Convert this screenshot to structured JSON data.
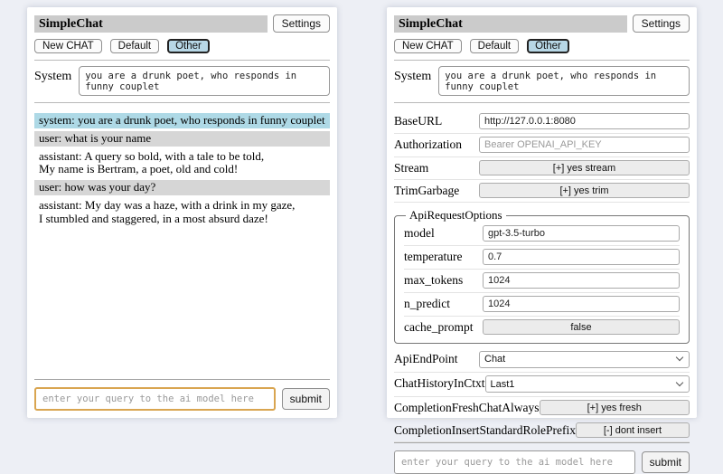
{
  "colors": {
    "page_bg": "#edeff5",
    "panel_bg": "#ffffff",
    "titlebar_bg": "#cbcbcb",
    "active_tab_bg": "#b7d7e6",
    "active_tab_border": "#222222",
    "system_msg_bg": "#aed9e6",
    "user_msg_bg": "#d6d6d6",
    "query_focus_border": "#d9a550"
  },
  "left_panel": {
    "title": "SimpleChat",
    "settings_button": "Settings",
    "session_tabs": [
      {
        "label": "New CHAT",
        "active": false
      },
      {
        "label": "Default",
        "active": false
      },
      {
        "label": "Other",
        "active": true
      }
    ],
    "system_label": "System",
    "system_prompt": "you are a drunk poet, who responds in funny couplet",
    "messages": [
      {
        "role": "system",
        "text": "system: you are a drunk poet, who responds in funny couplet"
      },
      {
        "role": "user",
        "text": "user: what is your name"
      },
      {
        "role": "assistant",
        "text": "assistant: A query so bold, with a tale to be told,\nMy name is Bertram, a poet, old and cold!"
      },
      {
        "role": "user",
        "text": "user: how was your day?"
      },
      {
        "role": "assistant",
        "text": "assistant: My day was a haze, with a drink in my gaze,\nI stumbled and staggered, in a most absurd daze!"
      }
    ],
    "query": {
      "placeholder": "enter your query to the ai model here",
      "focused": true
    },
    "submit_label": "submit"
  },
  "right_panel": {
    "title": "SimpleChat",
    "settings_button": "Settings",
    "session_tabs": [
      {
        "label": "New CHAT",
        "active": false
      },
      {
        "label": "Default",
        "active": false
      },
      {
        "label": "Other",
        "active": true
      }
    ],
    "system_label": "System",
    "system_prompt": "you are a drunk poet, who responds in funny couplet",
    "settings": {
      "rows_top": [
        {
          "label": "BaseURL",
          "control": "input",
          "value": "http://127.0.0.1:8080"
        },
        {
          "label": "Authorization",
          "control": "input",
          "placeholder": "Bearer OPENAI_API_KEY"
        },
        {
          "label": "Stream",
          "control": "button",
          "value": "[+] yes stream"
        },
        {
          "label": "TrimGarbage",
          "control": "button",
          "value": "[+] yes trim"
        }
      ],
      "group": {
        "legend": "ApiRequestOptions",
        "rows": [
          {
            "label": "model",
            "control": "input",
            "value": "gpt-3.5-turbo"
          },
          {
            "label": "temperature",
            "control": "input",
            "value": "0.7"
          },
          {
            "label": "max_tokens",
            "control": "input",
            "value": "1024"
          },
          {
            "label": "n_predict",
            "control": "input",
            "value": "1024"
          },
          {
            "label": "cache_prompt",
            "control": "button",
            "value": "false"
          }
        ]
      },
      "rows_bottom": [
        {
          "label": "ApiEndPoint",
          "control": "select",
          "value": "Chat"
        },
        {
          "label": "ChatHistoryInCtxt",
          "control": "select",
          "value": "Last1"
        },
        {
          "label": "CompletionFreshChatAlways",
          "control": "button",
          "value": "[+] yes fresh"
        },
        {
          "label": "CompletionInsertStandardRolePrefix",
          "control": "button",
          "value": "[-] dont insert"
        }
      ]
    },
    "query": {
      "placeholder": "enter your query to the ai model here",
      "focused": false
    },
    "submit_label": "submit"
  }
}
